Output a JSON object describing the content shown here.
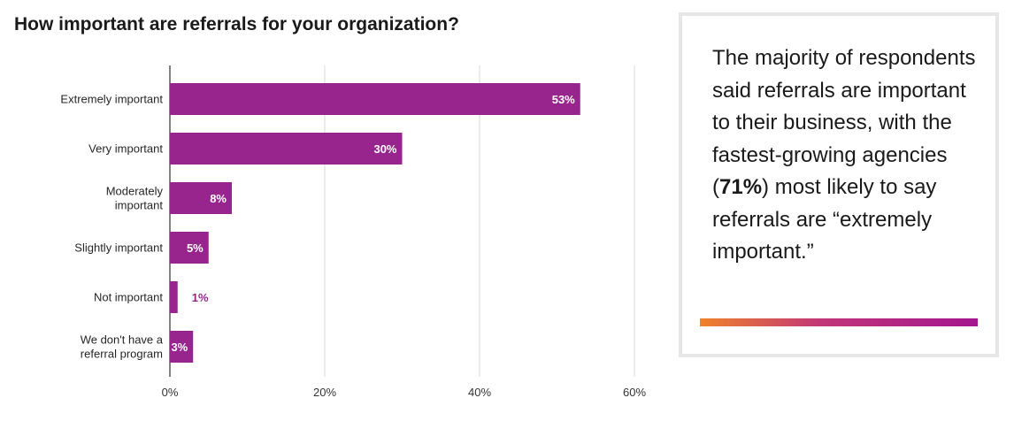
{
  "chart_data": {
    "type": "bar",
    "orientation": "horizontal",
    "title": "How important are referrals for your organization?",
    "categories": [
      [
        "Extremely important"
      ],
      [
        "Very important"
      ],
      [
        "Moderately",
        "important"
      ],
      [
        "Slightly important"
      ],
      [
        "Not important"
      ],
      [
        "We don't have a",
        "referral program"
      ]
    ],
    "values": [
      53,
      30,
      8,
      5,
      1,
      3
    ],
    "data_labels": [
      "53%",
      "30%",
      "8%",
      "5%",
      "1%",
      "3%"
    ],
    "xlim": [
      0,
      60
    ],
    "xticks": [
      0,
      20,
      40,
      60
    ],
    "xtick_labels": [
      "0%",
      "20%",
      "40%",
      "60%"
    ],
    "grid": "vertical",
    "bar_color": "#98248d",
    "legend": "none"
  },
  "callout": {
    "text_before": "The majority of respondents said referrals are important to their business, with the fastest-growing agencies (",
    "highlight": "71%",
    "text_after": ") most likely to say referrals are “extremely important.”",
    "accent_colors": [
      "#f0832a",
      "#c0347a",
      "#a4168e"
    ]
  }
}
